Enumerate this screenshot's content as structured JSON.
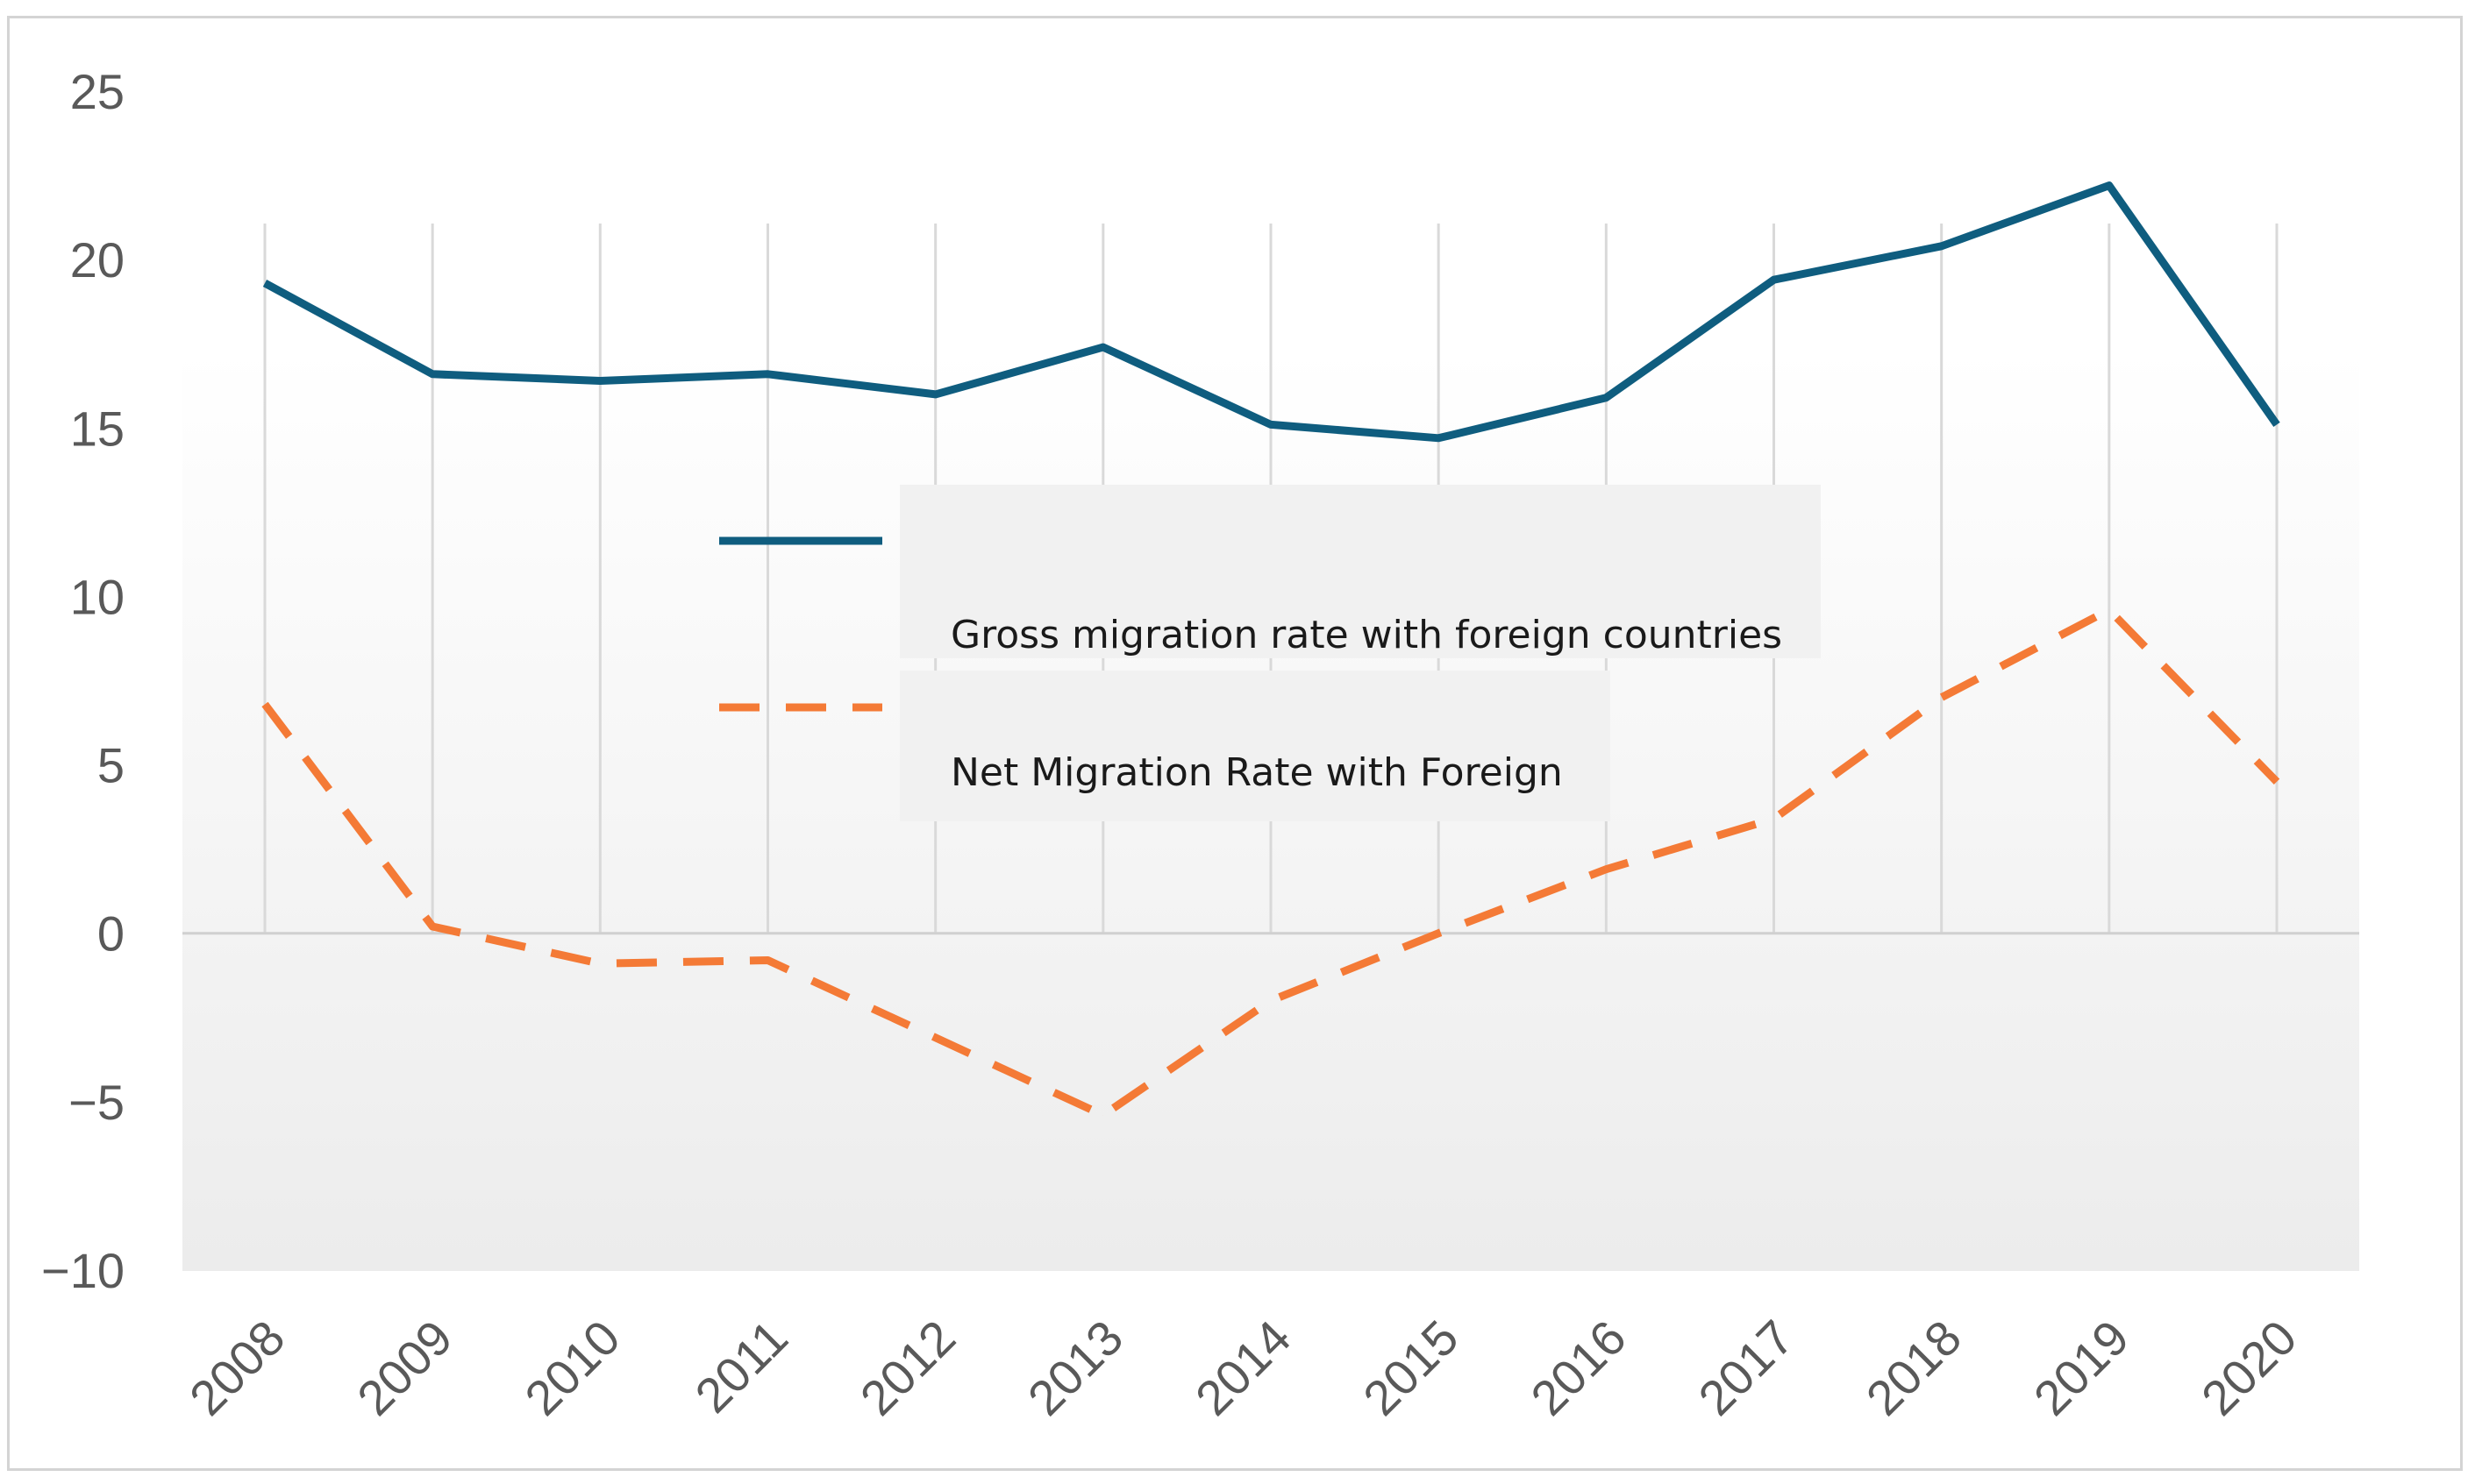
{
  "chart_data": {
    "type": "line",
    "title": "",
    "xlabel": "",
    "ylabel": "",
    "categories": [
      "2008",
      "2009",
      "2010",
      "2011",
      "2012",
      "2013",
      "2014",
      "2015",
      "2016",
      "2017",
      "2018",
      "2019",
      "2020"
    ],
    "ylim": [
      -10,
      25
    ],
    "yticks": [
      25,
      20,
      15,
      10,
      5,
      0,
      -5,
      -10
    ],
    "ytick_labels": [
      "25",
      "20",
      "15",
      "10",
      "5",
      "0",
      "−5",
      "−10"
    ],
    "grid": "vertical",
    "legend_position": "center",
    "series": [
      {
        "name": "Gross migration rate with foreign countries",
        "values": [
          19.3,
          16.6,
          16.4,
          16.6,
          16.0,
          17.4,
          15.1,
          14.7,
          15.9,
          19.4,
          20.4,
          22.2,
          15.1
        ],
        "color": "#0f5d7f",
        "style": "solid"
      },
      {
        "name": "Net Migration Rate with Foreign",
        "values": [
          6.8,
          0.2,
          -0.9,
          -0.8,
          -3.1,
          -5.4,
          -2.0,
          0.0,
          1.9,
          3.4,
          7.0,
          9.6,
          4.5
        ],
        "color": "#f47a36",
        "style": "dashed"
      }
    ]
  }
}
